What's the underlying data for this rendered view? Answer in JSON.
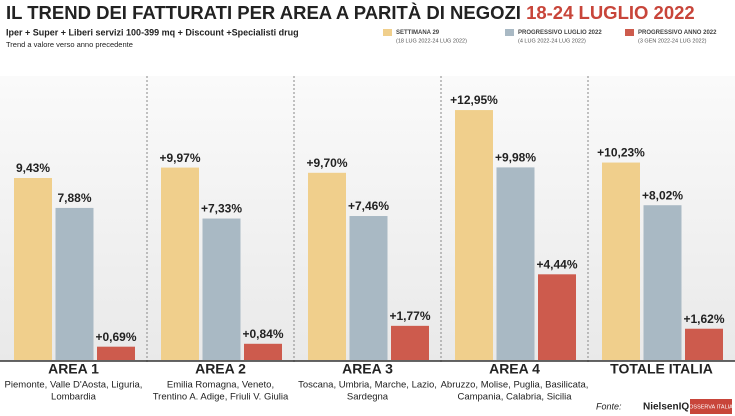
{
  "chart_data": {
    "type": "bar",
    "title": "IL TREND DEI FATTURATI PER AREA A PARITÀ DI NEGOZI",
    "title_dates": "18-24 LUGLIO 2022",
    "subtitle": "Iper + Super + Liberi servizi 100-399 mq + Discount +Specialisti drug",
    "note": "Trend a valore verso anno precedente",
    "categories": [
      "AREA 1",
      "AREA 2",
      "AREA 3",
      "AREA 4",
      "TOTALE ITALIA"
    ],
    "regions": [
      [
        "Piemonte, Valle D'Aosta, Liguria,",
        "Lombardia"
      ],
      [
        "Emilia Romagna, Veneto,",
        "Trentino A. Adige, Friuli V. Giulia"
      ],
      [
        "Toscana, Umbria, Marche, Lazio,",
        "Sardegna"
      ],
      [
        "Abruzzo, Molise, Puglia, Basilicata,",
        "Campania, Calabria, Sicilia"
      ],
      []
    ],
    "series": [
      {
        "name": "SETTIMANA 29",
        "period": "(18 LUG 2022-24 LUG 2022)",
        "color": "#f0cf8c",
        "values": [
          9.43,
          9.97,
          9.7,
          12.95,
          10.23
        ],
        "value_labels": [
          "9,43%",
          "+9,97%",
          "+9,70%",
          "+12,95%",
          "+10,23%"
        ]
      },
      {
        "name": "PROGRESSIVO LUGLIO 2022",
        "period": "(4 LUG 2022-24 LUG 2022)",
        "color": "#a9b9c4",
        "values": [
          7.88,
          7.33,
          7.46,
          9.98,
          8.02
        ],
        "value_labels": [
          "7,88%",
          "+7,33%",
          "+7,46%",
          "+9,98%",
          "+8,02%"
        ]
      },
      {
        "name": "PROGRESSIVO ANNO 2022",
        "period": "(3 GEN 2022-24 LUG 2022)",
        "color": "#cd5b4d",
        "values": [
          0.69,
          0.84,
          1.77,
          4.44,
          1.62
        ],
        "value_labels": [
          "+0,69%",
          "+0,84%",
          "+1,77%",
          "+4,44%",
          "+1,62%"
        ]
      }
    ],
    "source_label": "Fonte:",
    "sources": [
      "NielsenIQ",
      "OSSERVA ITALIA"
    ]
  }
}
